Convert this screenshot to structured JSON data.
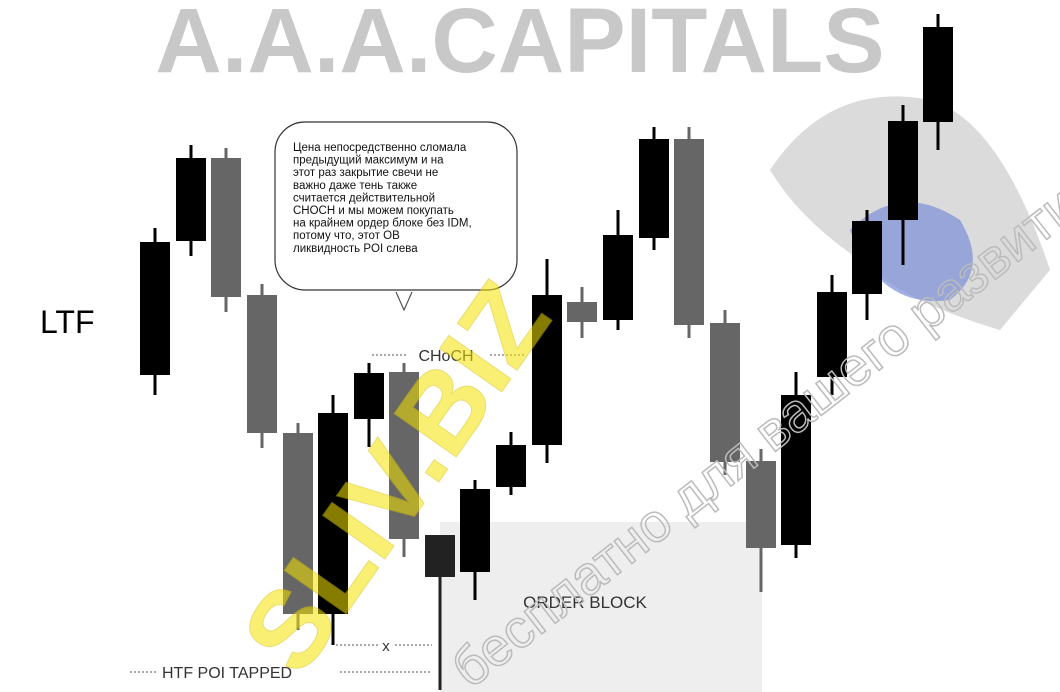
{
  "watermark": "A.A.A.CAPITALS",
  "label": "LTF",
  "callout": [
    "Цена непосредственно сломала",
    "предыдущий максимум и на",
    "этот раз закрытие свечи не",
    "важно даже тень также",
    "считается действительной",
    "CHOCH  и мы можем покупать",
    "на крайнем ордер блоке без IDM,",
    "потому что, этот OB",
    "ликвидность POI слева"
  ],
  "annotations": {
    "choch": "CHoCH",
    "x": "x",
    "htf": "HTF  POI  TAPPED",
    "order_block": "ORDER  BLOCK"
  },
  "overlay": {
    "site": "SLIV.BIZ",
    "slogan": "бесплатно для вашего развития"
  }
}
